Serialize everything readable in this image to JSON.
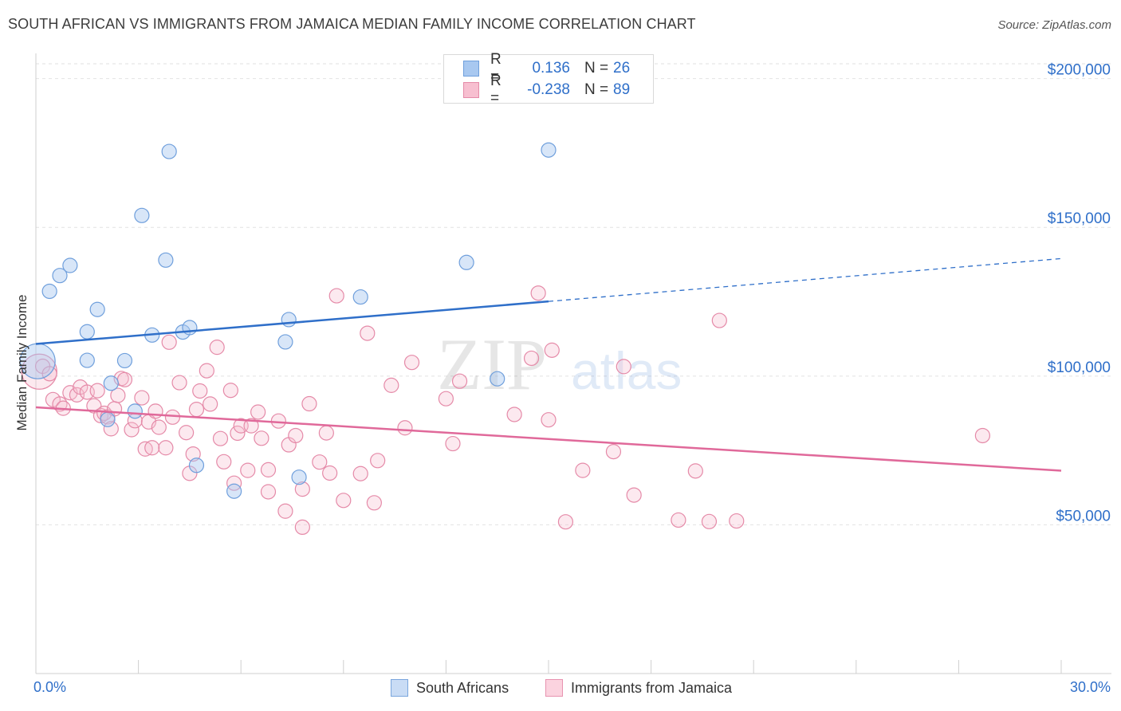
{
  "header": {
    "title": "SOUTH AFRICAN VS IMMIGRANTS FROM JAMAICA MEDIAN FAMILY INCOME CORRELATION CHART",
    "source": "Source: ZipAtlas.com"
  },
  "watermark": {
    "zip": "ZIP",
    "atlas": "atlas"
  },
  "legend": {
    "rows": [
      {
        "r_label": "R =",
        "r_value": "0.136",
        "n_label": "N =",
        "n_value": "26",
        "color": "#a8c8f0",
        "border": "#6f9fdc"
      },
      {
        "r_label": "R =",
        "r_value": "-0.238",
        "n_label": "N =",
        "n_value": "89",
        "color": "#f7bfd0",
        "border": "#e58aa8"
      }
    ]
  },
  "bottom_legend": {
    "items": [
      {
        "label": "South Africans",
        "color": "#c9dcf5",
        "border": "#7aa6dd"
      },
      {
        "label": "Immigrants from Jamaica",
        "color": "#fbd3df",
        "border": "#e893b0"
      }
    ]
  },
  "chart_data": {
    "type": "scatter",
    "title": "SOUTH AFRICAN VS IMMIGRANTS FROM JAMAICA MEDIAN FAMILY INCOME CORRELATION CHART",
    "xlabel": "",
    "ylabel": "Median Family Income",
    "xlim": [
      0,
      30
    ],
    "ylim": [
      0,
      205000
    ],
    "x_tick_labels": [
      "0.0%",
      "30.0%"
    ],
    "y_ticks": [
      {
        "value": 50000,
        "label": "$50,000"
      },
      {
        "value": 100000,
        "label": "$100,000"
      },
      {
        "value": 150000,
        "label": "$150,000"
      },
      {
        "value": 200000,
        "label": "$200,000"
      }
    ],
    "grid": true,
    "colors": {
      "blue": "#2f6fc9",
      "pink": "#e0699a",
      "tick": "#2f6fc9"
    },
    "series": [
      {
        "name": "South Africans",
        "color": "#a8c8f0",
        "trend": {
          "x0": 0,
          "y0": 110800,
          "x1": 15,
          "y1": 125100,
          "x_dashed_end": 30,
          "y_dashed_end": 139500
        },
        "points": [
          [
            0.05,
            105000,
            22
          ],
          [
            0.4,
            128500,
            9
          ],
          [
            0.7,
            133800,
            9
          ],
          [
            1.0,
            137200,
            9
          ],
          [
            1.5,
            105300,
            9
          ],
          [
            1.5,
            114900,
            9
          ],
          [
            1.8,
            122400,
            9
          ],
          [
            2.1,
            85400,
            9
          ],
          [
            2.2,
            97600,
            9
          ],
          [
            2.6,
            105200,
            9
          ],
          [
            2.9,
            88200,
            9
          ],
          [
            3.1,
            154000,
            9
          ],
          [
            3.4,
            113800,
            9
          ],
          [
            3.8,
            139000,
            9
          ],
          [
            3.9,
            175500,
            9
          ],
          [
            4.3,
            114800,
            9
          ],
          [
            4.5,
            116300,
            9
          ],
          [
            4.7,
            70000,
            9
          ],
          [
            5.8,
            61300,
            9
          ],
          [
            7.3,
            111500,
            9
          ],
          [
            7.4,
            119000,
            9
          ],
          [
            7.7,
            66000,
            9
          ],
          [
            9.5,
            126600,
            9
          ],
          [
            12.6,
            138200,
            9
          ],
          [
            13.5,
            99100,
            9
          ],
          [
            15.0,
            176000,
            9
          ]
        ]
      },
      {
        "name": "Immigrants from Jamaica",
        "color": "#f7bfd0",
        "trend": {
          "x0": 0,
          "y0": 89500,
          "x1": 30,
          "y1": 68200
        },
        "points": [
          [
            0.1,
            101500,
            22
          ],
          [
            0.2,
            103300,
            9
          ],
          [
            0.4,
            100800,
            9
          ],
          [
            0.5,
            92100,
            9
          ],
          [
            0.7,
            90600,
            9
          ],
          [
            0.8,
            89200,
            9
          ],
          [
            1.0,
            94400,
            9
          ],
          [
            1.2,
            93700,
            9
          ],
          [
            1.3,
            96300,
            9
          ],
          [
            1.5,
            94600,
            9
          ],
          [
            1.7,
            90000,
            9
          ],
          [
            1.8,
            95100,
            9
          ],
          [
            1.9,
            86700,
            9
          ],
          [
            2.0,
            87500,
            9
          ],
          [
            2.1,
            86300,
            9
          ],
          [
            2.2,
            82300,
            9
          ],
          [
            2.3,
            89000,
            9
          ],
          [
            2.4,
            93500,
            9
          ],
          [
            2.5,
            99200,
            9
          ],
          [
            2.6,
            98800,
            9
          ],
          [
            2.8,
            82000,
            9
          ],
          [
            2.9,
            85000,
            9
          ],
          [
            3.1,
            92700,
            9
          ],
          [
            3.2,
            75500,
            9
          ],
          [
            3.3,
            84600,
            9
          ],
          [
            3.4,
            75900,
            9
          ],
          [
            3.5,
            88200,
            9
          ],
          [
            3.6,
            82800,
            9
          ],
          [
            3.8,
            75900,
            9
          ],
          [
            3.9,
            111400,
            9
          ],
          [
            4.0,
            86200,
            9
          ],
          [
            4.2,
            97800,
            9
          ],
          [
            4.4,
            81000,
            9
          ],
          [
            4.5,
            67300,
            9
          ],
          [
            4.6,
            73800,
            9
          ],
          [
            4.7,
            88800,
            9
          ],
          [
            4.8,
            95000,
            9
          ],
          [
            5.0,
            101800,
            9
          ],
          [
            5.1,
            90600,
            9
          ],
          [
            5.3,
            109700,
            9
          ],
          [
            5.4,
            79000,
            9
          ],
          [
            5.5,
            71200,
            9
          ],
          [
            5.7,
            95200,
            9
          ],
          [
            5.8,
            64000,
            9
          ],
          [
            5.9,
            80800,
            9
          ],
          [
            6.0,
            83300,
            9
          ],
          [
            6.2,
            68300,
            9
          ],
          [
            6.3,
            83300,
            9
          ],
          [
            6.5,
            87900,
            9
          ],
          [
            6.6,
            79100,
            9
          ],
          [
            6.8,
            61100,
            9
          ],
          [
            6.8,
            68500,
            9
          ],
          [
            7.1,
            84900,
            9
          ],
          [
            7.3,
            54600,
            9
          ],
          [
            7.4,
            76900,
            9
          ],
          [
            7.6,
            80000,
            9
          ],
          [
            7.8,
            49200,
            9
          ],
          [
            7.8,
            62000,
            9
          ],
          [
            8.0,
            90700,
            9
          ],
          [
            8.3,
            71100,
            9
          ],
          [
            8.5,
            80900,
            9
          ],
          [
            8.6,
            67400,
            9
          ],
          [
            8.8,
            127000,
            9
          ],
          [
            9.0,
            58200,
            9
          ],
          [
            9.5,
            67200,
            9
          ],
          [
            9.7,
            114400,
            9
          ],
          [
            9.9,
            57400,
            9
          ],
          [
            10.0,
            71600,
            9
          ],
          [
            10.4,
            96900,
            9
          ],
          [
            10.8,
            82600,
            9
          ],
          [
            11.0,
            104600,
            9
          ],
          [
            12.0,
            92400,
            9
          ],
          [
            12.2,
            77300,
            9
          ],
          [
            12.4,
            98300,
            9
          ],
          [
            14.0,
            87100,
            9
          ],
          [
            14.5,
            106000,
            9
          ],
          [
            14.7,
            127900,
            9
          ],
          [
            15.0,
            85300,
            9
          ],
          [
            15.1,
            108700,
            9
          ],
          [
            15.5,
            51000,
            9
          ],
          [
            16.0,
            68300,
            9
          ],
          [
            16.9,
            74600,
            9
          ],
          [
            17.2,
            103200,
            9
          ],
          [
            17.5,
            60000,
            9
          ],
          [
            18.8,
            51600,
            9
          ],
          [
            19.3,
            68100,
            9
          ],
          [
            19.7,
            51100,
            9
          ],
          [
            20.0,
            118700,
            9
          ],
          [
            20.5,
            51300,
            9
          ],
          [
            27.7,
            80000,
            9
          ]
        ]
      }
    ]
  }
}
